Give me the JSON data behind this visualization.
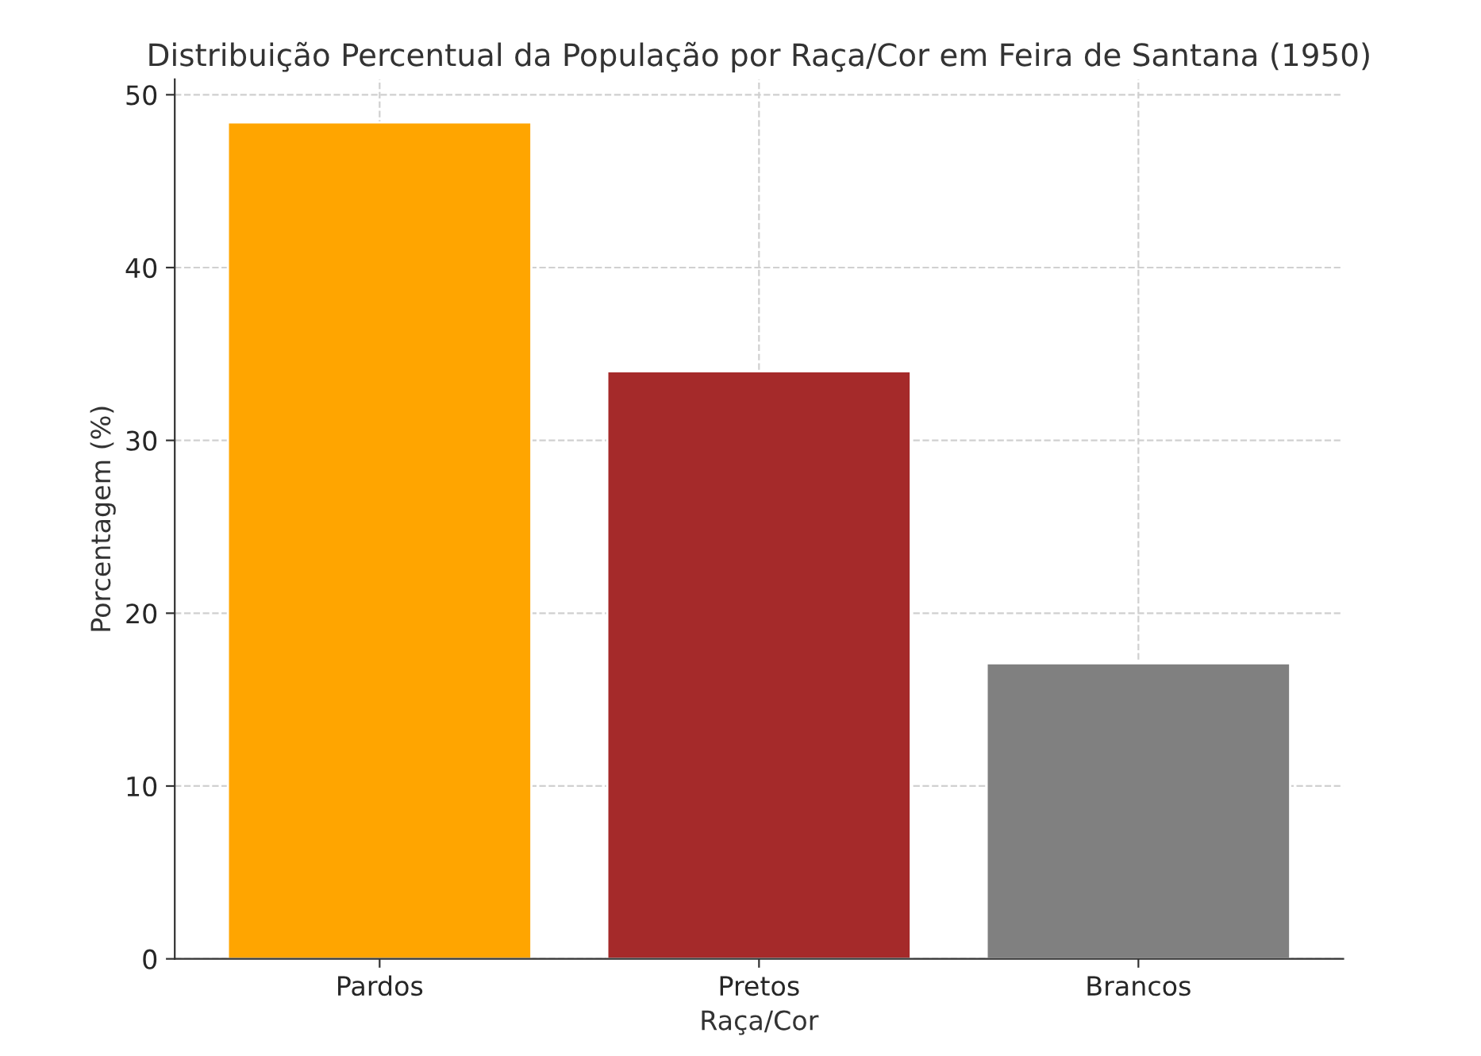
{
  "chart_data": {
    "type": "bar",
    "title": "Distribuição Percentual da População por Raça/Cor em Feira de Santana (1950)",
    "xlabel": "Raça/Cor",
    "ylabel": "Porcentagem (%)",
    "categories": [
      "Pardos",
      "Pretos",
      "Brancos"
    ],
    "values": [
      48.4,
      34.0,
      17.1
    ],
    "colors": [
      "#ffa500",
      "#a52a2a",
      "#808080"
    ],
    "ylim": [
      0,
      50.9
    ],
    "yticks": [
      0,
      10,
      20,
      30,
      40,
      50
    ],
    "grid": true,
    "legend": false
  }
}
